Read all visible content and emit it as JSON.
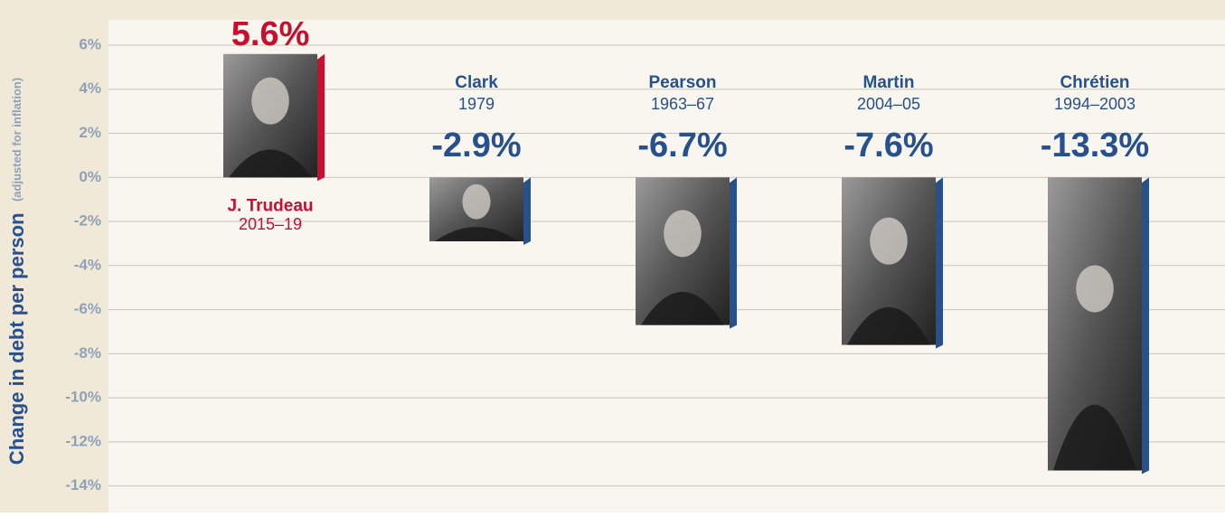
{
  "chart_data": {
    "type": "bar",
    "y_label": "Change in debt per person",
    "y_label_note": "(adjusted for inflation)",
    "categories": [
      "J. Trudeau",
      "Clark",
      "Pearson",
      "Martin",
      "Chrétien"
    ],
    "periods": [
      "2015–19",
      "1979",
      "1963–67",
      "2004–05",
      "1994–2003"
    ],
    "values": [
      5.6,
      -2.9,
      -6.7,
      -7.6,
      -13.3
    ],
    "value_labels": [
      "5.6%",
      "-2.9%",
      "-6.7%",
      "-7.6%",
      "-13.3%"
    ],
    "colors": [
      "#c8102e",
      "#27508f",
      "#27508f",
      "#27508f",
      "#27508f"
    ],
    "ylim": [
      -15,
      7
    ],
    "yticks": [
      {
        "value": 6,
        "label": "6%"
      },
      {
        "value": 4,
        "label": "4%"
      },
      {
        "value": 2,
        "label": "2%"
      },
      {
        "value": 0,
        "label": "0%"
      },
      {
        "value": -2,
        "label": "-2%"
      },
      {
        "value": -4,
        "label": "-4%"
      },
      {
        "value": -6,
        "label": "-6%"
      },
      {
        "value": -8,
        "label": "-8%"
      },
      {
        "value": -10,
        "label": "-10%"
      },
      {
        "value": -12,
        "label": "-12%"
      },
      {
        "value": -14,
        "label": "-14%"
      }
    ],
    "grid": true
  }
}
